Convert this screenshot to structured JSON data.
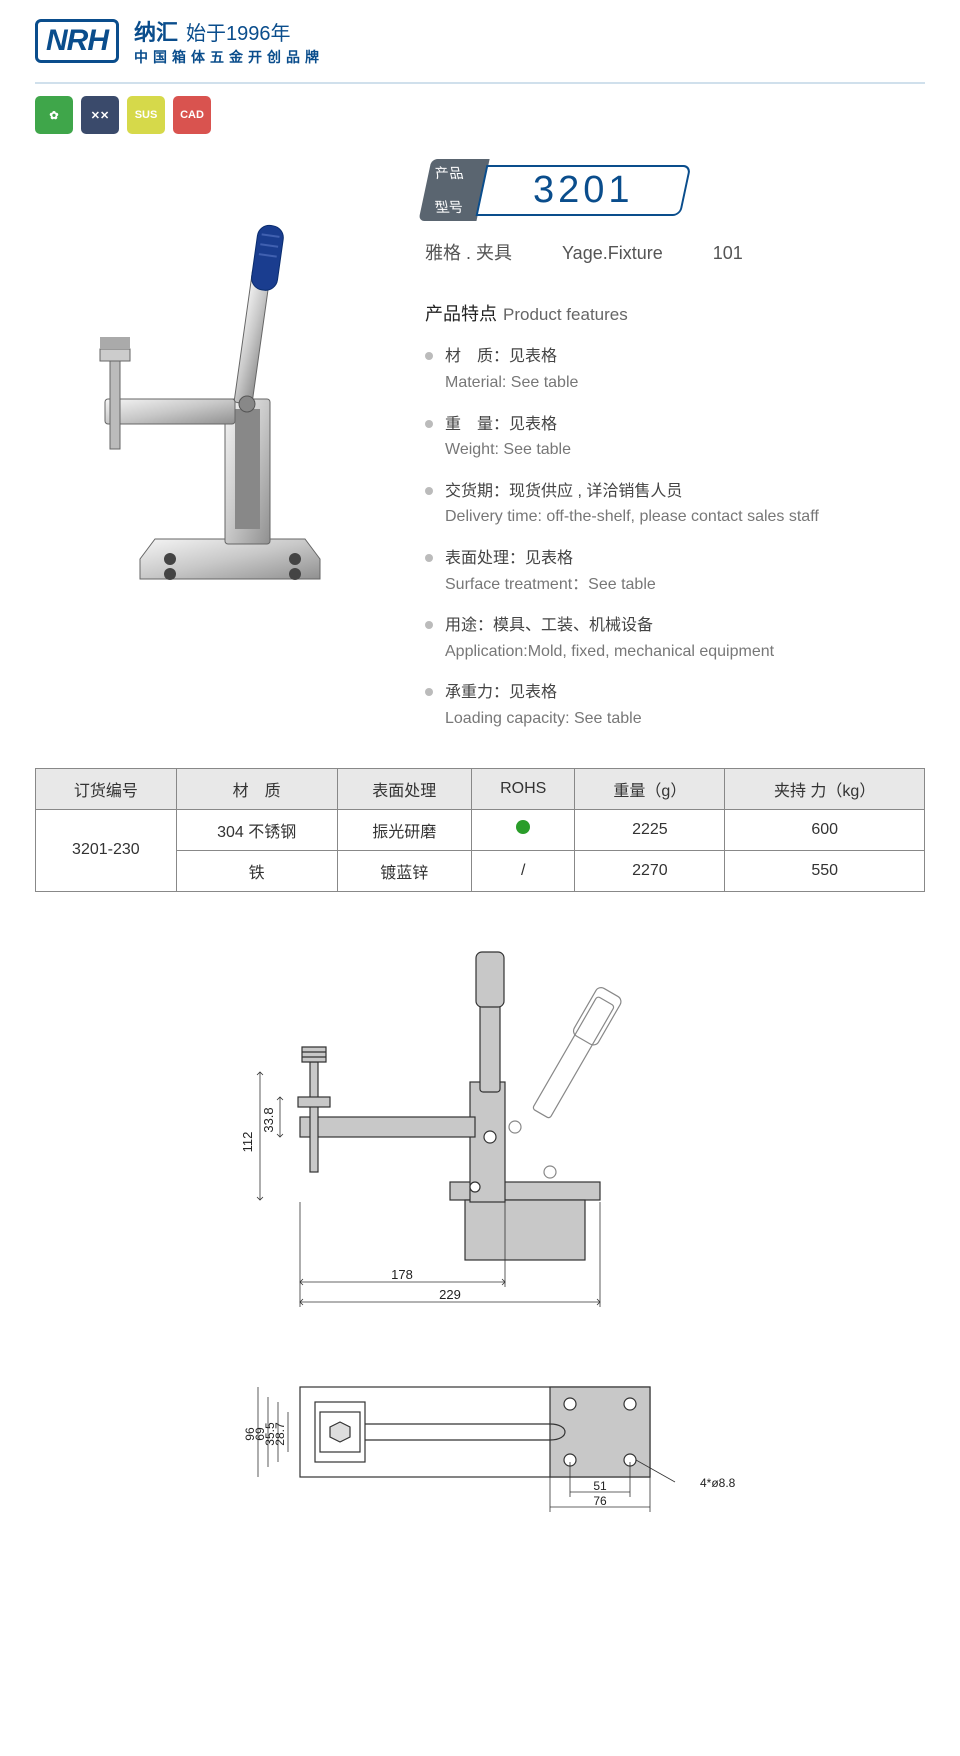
{
  "header": {
    "logo": "NRH",
    "brand1a": "纳汇",
    "brand1b": "始于1996年",
    "brand2": "中国箱体五金开创品牌",
    "icons": [
      {
        "bg": "#3fa64a",
        "txt": "✿"
      },
      {
        "bg": "#3a4a6b",
        "txt": "✕✕"
      },
      {
        "bg": "#d6d94a",
        "txt": "SUS"
      },
      {
        "bg": "#d9534f",
        "txt": "CAD"
      }
    ]
  },
  "model": {
    "label1": "产品",
    "label2": "型号",
    "number": "3201",
    "sub_cn": "雅格 . 夹具",
    "sub_en": "Yage.Fixture",
    "sub_num": "101"
  },
  "features": {
    "title_cn": "产品特点",
    "title_en": "Product features",
    "items": [
      {
        "cn": "材　质：见表格",
        "en": "Material: See table"
      },
      {
        "cn": "重　量：见表格",
        "en": "Weight: See table"
      },
      {
        "cn": "交货期：现货供应 , 详洽销售人员",
        "en": "Delivery time: off-the-shelf, please contact sales staff"
      },
      {
        "cn": "表面处理：见表格",
        "en": "Surface treatment：See table"
      },
      {
        "cn": "用途：模具、工装、机械设备",
        "en": "Application:Mold, fixed, mechanical equipment"
      },
      {
        "cn": "承重力：见表格",
        "en": "Loading capacity: See table"
      }
    ]
  },
  "table": {
    "headers": [
      "订货编号",
      "材　质",
      "表面处理",
      "ROHS",
      "重量（g）",
      "夹持 力（kg）"
    ],
    "order_no": "3201-230",
    "rows": [
      {
        "material": "304 不锈钢",
        "surface": "振光研磨",
        "rohs": "dot",
        "weight": "2225",
        "capacity": "600"
      },
      {
        "material": "铁",
        "surface": "镀蓝锌",
        "rohs": "/",
        "weight": "2270",
        "capacity": "550"
      }
    ]
  },
  "drawing": {
    "dims": {
      "d1": "33.8",
      "d2": "112",
      "d3": "178",
      "d4": "229",
      "d5": "28.7",
      "d6": "35.5",
      "d7": "69",
      "d8": "96",
      "d9": "51",
      "d10": "76",
      "d11": "4*ø8.8"
    },
    "colors": {
      "line": "#333",
      "fill": "#c8c8c8",
      "note": "#222"
    }
  }
}
